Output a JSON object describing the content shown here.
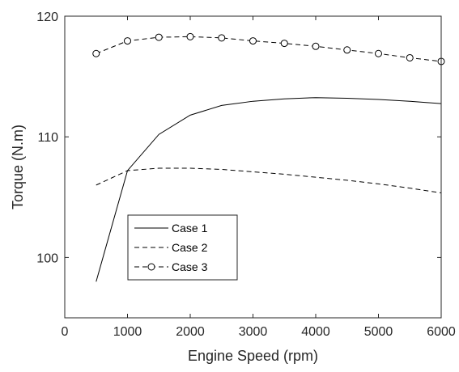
{
  "chart_data": {
    "type": "line",
    "xlabel": "Engine Speed (rpm)",
    "ylabel": "Torque (N.m)",
    "xlim": [
      0,
      6000
    ],
    "ylim": [
      95,
      120
    ],
    "xticks": [
      0,
      1000,
      2000,
      3000,
      4000,
      5000,
      6000
    ],
    "yticks": [
      100,
      110,
      120
    ],
    "grid": false,
    "legend_position": "bottom-left",
    "series": [
      {
        "name": "Case 1",
        "line_style": "solid",
        "marker": "none",
        "color": "#000000",
        "x": [
          500,
          1000,
          1500,
          2000,
          2500,
          3000,
          3500,
          4000,
          4500,
          5000,
          5500,
          6000
        ],
        "y": [
          98.0,
          107.2,
          110.2,
          111.8,
          112.6,
          112.95,
          113.15,
          113.25,
          113.2,
          113.1,
          112.95,
          112.75
        ]
      },
      {
        "name": "Case 2",
        "line_style": "dashed",
        "marker": "none",
        "color": "#000000",
        "x": [
          500,
          1000,
          1500,
          2000,
          2500,
          3000,
          3500,
          4000,
          4500,
          5000,
          5500,
          6000
        ],
        "y": [
          106.0,
          107.2,
          107.4,
          107.4,
          107.3,
          107.1,
          106.9,
          106.65,
          106.4,
          106.1,
          105.75,
          105.35
        ]
      },
      {
        "name": "Case 3",
        "line_style": "dashed",
        "marker": "circle",
        "color": "#000000",
        "x": [
          500,
          1000,
          1500,
          2000,
          2500,
          3000,
          3500,
          4000,
          4500,
          5000,
          5500,
          6000
        ],
        "y": [
          116.9,
          117.95,
          118.25,
          118.3,
          118.2,
          117.95,
          117.75,
          117.5,
          117.2,
          116.9,
          116.55,
          116.25
        ]
      }
    ]
  }
}
